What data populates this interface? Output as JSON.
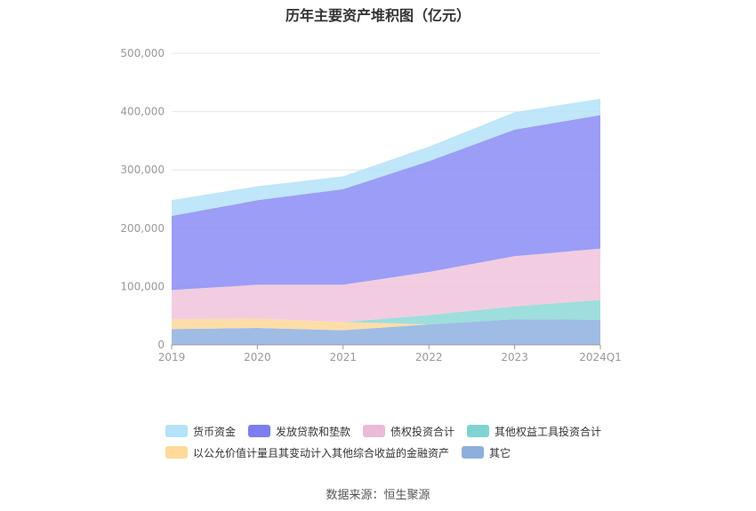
{
  "chart_data": {
    "type": "area",
    "title": "历年主要资产堆积图（亿元）",
    "categories": [
      "2019",
      "2020",
      "2021",
      "2022",
      "2023",
      "2024Q1"
    ],
    "ylim": [
      0,
      500000
    ],
    "y_ticks": [
      "0",
      "100,000",
      "200,000",
      "300,000",
      "400,000",
      "500,000"
    ],
    "stacked": true,
    "grid": true,
    "legend_position": "bottom",
    "series": [
      {
        "name": "其它",
        "color": "#8eb0e0",
        "values": [
          27000,
          29000,
          25000,
          35000,
          44000,
          43000
        ]
      },
      {
        "name": "以公允价值计量且其变动计入其他综合收益的金融资产",
        "color": "#ffd79a",
        "values": [
          17000,
          16000,
          14000,
          0,
          0,
          0
        ]
      },
      {
        "name": "其他权益工具投资合计",
        "color": "#8dd8d6",
        "values": [
          0,
          0,
          0,
          16000,
          22000,
          34000
        ]
      },
      {
        "name": "债权投资合计",
        "color": "#f0c4dc",
        "values": [
          50000,
          58000,
          64000,
          74000,
          86000,
          88000
        ]
      },
      {
        "name": "发放贷款和垫款",
        "color": "#8a8cf4",
        "values": [
          127000,
          145000,
          164000,
          190000,
          217000,
          229000
        ]
      },
      {
        "name": "货币资金",
        "color": "#b4e2f8",
        "values": [
          27000,
          24000,
          22000,
          25000,
          30000,
          28000
        ]
      }
    ]
  },
  "legend": {
    "row1": [
      {
        "label": "货币资金",
        "color": "#b4e2f8"
      },
      {
        "label": "发放贷款和垫款",
        "color": "#7b7df0"
      },
      {
        "label": "债权投资合计",
        "color": "#ebbad8"
      },
      {
        "label": "其他权益工具投资合计",
        "color": "#7fd4d2"
      }
    ],
    "row2": [
      {
        "label": "以公允价值计量且其变动计入其他综合收益的金融资产",
        "color": "#ffd99a"
      },
      {
        "label": "其它",
        "color": "#8eaedd"
      }
    ]
  },
  "source": "数据来源：恒生聚源"
}
